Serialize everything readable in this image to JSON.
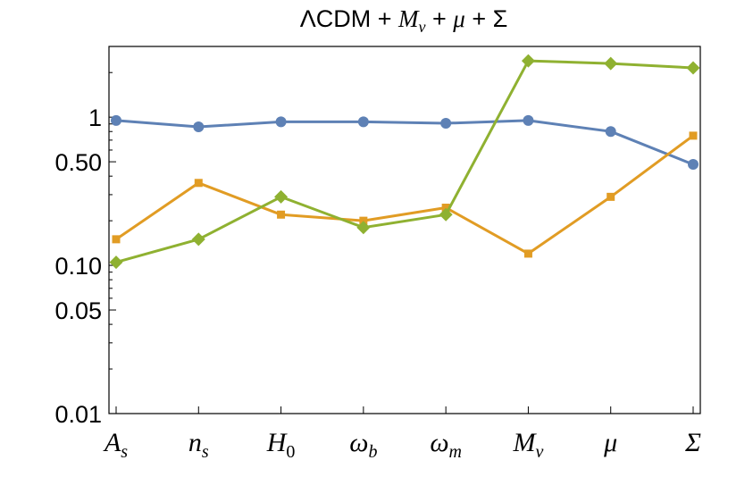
{
  "chart_data": {
    "type": "line",
    "title": "ΛCDM + Mν + μ + Σ",
    "title_parts": {
      "a": "ΛCDM + ",
      "b": "M",
      "b_sub": "ν",
      "c": " + ",
      "d": "μ",
      "e": " + Σ"
    },
    "categories": [
      {
        "main": "A",
        "sub": "s"
      },
      {
        "main": "n",
        "sub": "s"
      },
      {
        "main": "H",
        "sub": "0"
      },
      {
        "main": "ω",
        "sub": "b"
      },
      {
        "main": "ω",
        "sub": "m"
      },
      {
        "main": "M",
        "sub": "ν"
      },
      {
        "main": "μ",
        "sub": ""
      },
      {
        "main": "Σ",
        "sub": ""
      }
    ],
    "y_scale": "log",
    "ylim": [
      0.01,
      3.0
    ],
    "yticks": [
      {
        "value": 0.01,
        "label": "0.01"
      },
      {
        "value": 0.05,
        "label": "0.05"
      },
      {
        "value": 0.1,
        "label": "0.10"
      },
      {
        "value": 0.5,
        "label": "0.50"
      },
      {
        "value": 1,
        "label": "1"
      }
    ],
    "series": [
      {
        "name": "blue",
        "color": "#5e81b5",
        "marker": "circle",
        "values": [
          0.95,
          0.86,
          0.93,
          0.93,
          0.91,
          0.95,
          0.8,
          0.48
        ]
      },
      {
        "name": "orange",
        "color": "#e19c24",
        "marker": "square",
        "values": [
          0.15,
          0.36,
          0.22,
          0.2,
          0.245,
          0.12,
          0.29,
          0.75
        ]
      },
      {
        "name": "green",
        "color": "#8fb131",
        "marker": "diamond",
        "values": [
          0.105,
          0.15,
          0.29,
          0.18,
          0.22,
          2.4,
          2.3,
          2.15
        ]
      }
    ],
    "xlabel": "",
    "ylabel": "",
    "grid": false,
    "legend": "none"
  }
}
